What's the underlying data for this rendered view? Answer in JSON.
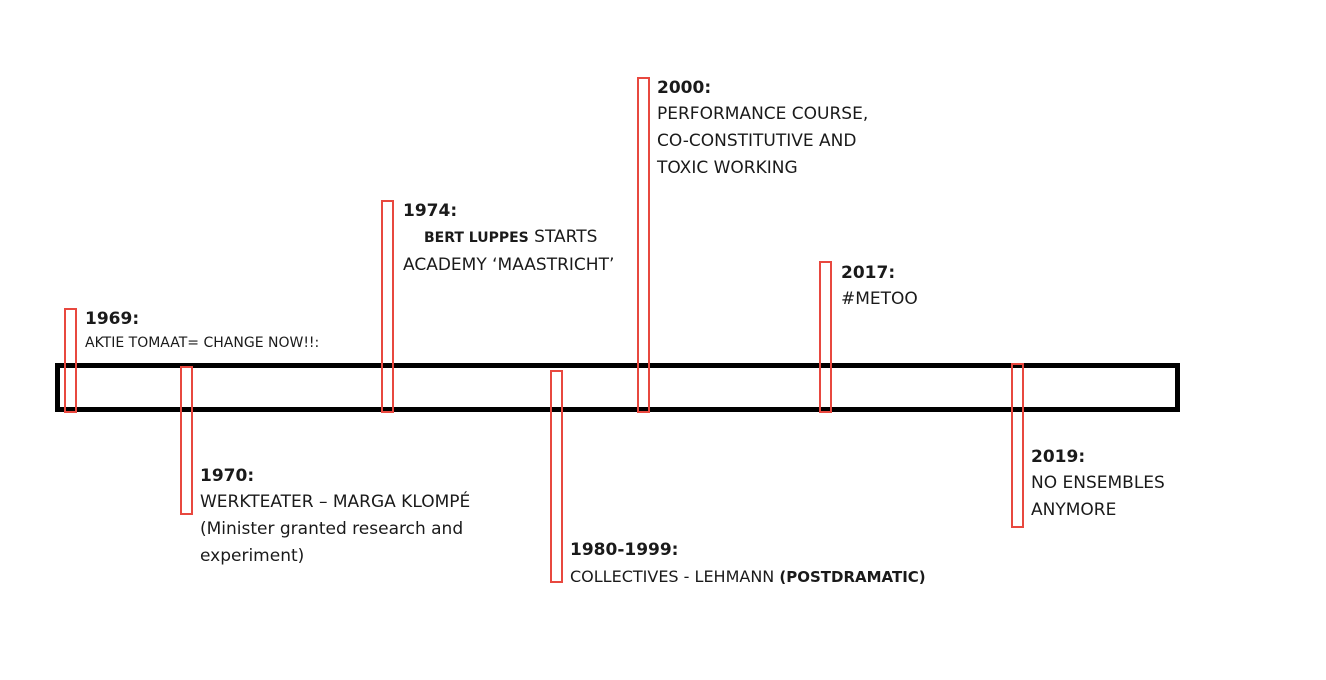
{
  "events": [
    {
      "year": "1969:",
      "lines": [
        "AKTIE TOMAAT= CHANGE NOW!!:"
      ]
    },
    {
      "year": "1970:",
      "lines": [
        "WERKTEATER – MARGA KLOMPÉ",
        "(Minister granted research and",
        "experiment)"
      ]
    },
    {
      "year": "1974:",
      "line1_name": "BERT LUPPES",
      "line1_rest": " STARTS",
      "lines": [
        "ACADEMY ‘MAASTRICHT’"
      ]
    },
    {
      "year": "1980-1999:",
      "line1_main": "COLLECTIVES - LEHMANN ",
      "line1_bold": "(POSTDRAMATIC)"
    },
    {
      "year": "2000:",
      "lines": [
        "PERFORMANCE COURSE,",
        "CO-CONSTITUTIVE AND",
        "TOXIC WORKING"
      ]
    },
    {
      "year": "2017:",
      "lines": [
        "#METOO"
      ]
    },
    {
      "year": "2019:",
      "lines": [
        "NO ENSEMBLES",
        "ANYMORE"
      ]
    }
  ],
  "colors": {
    "marker": "#e8483f",
    "bar": "#000000"
  }
}
